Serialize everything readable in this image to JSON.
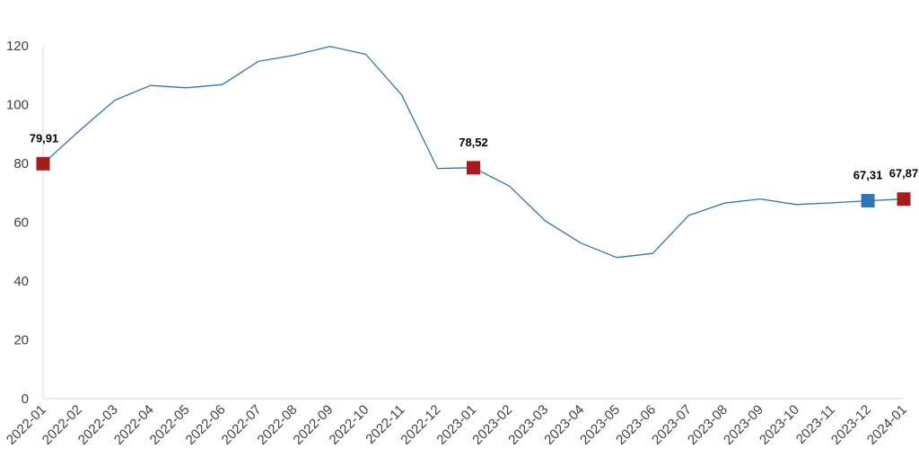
{
  "chart_data": {
    "type": "line",
    "title": "",
    "xlabel": "",
    "ylabel": "",
    "ylim": [
      0,
      120
    ],
    "yticks": [
      0,
      20,
      40,
      60,
      80,
      100,
      120
    ],
    "grid": false,
    "legend": "none",
    "categories": [
      "2022-01",
      "2022-02",
      "2022-03",
      "2022-04",
      "2022-05",
      "2022-06",
      "2022-07",
      "2022-08",
      "2022-09",
      "2022-10",
      "2022-11",
      "2022-12",
      "2023-01",
      "2023-02",
      "2023-03",
      "2023-04",
      "2023-05",
      "2023-06",
      "2023-07",
      "2023-08",
      "2023-09",
      "2023-10",
      "2023-11",
      "2023-12",
      "2024-01"
    ],
    "series": [
      {
        "values": [
          79.91,
          91,
          101.5,
          106.5,
          105.7,
          106.8,
          114.7,
          116.8,
          119.8,
          117.1,
          103.3,
          78.3,
          78.52,
          72.3,
          60.5,
          52.9,
          48.0,
          49.4,
          62.3,
          66.5,
          67.9,
          66.0,
          66.6,
          67.31,
          67.87
        ],
        "color": "#2E75B6"
      }
    ],
    "highlighted_points": [
      {
        "category": "2022-01",
        "value": 79.91,
        "label": "79,91",
        "color": "#A61C1C"
      },
      {
        "category": "2023-01",
        "value": 78.52,
        "label": "78,52",
        "color": "#A61C1C"
      },
      {
        "category": "2023-12",
        "value": 67.31,
        "label": "67,31",
        "color": "#2E75B6"
      },
      {
        "category": "2024-01",
        "value": 67.87,
        "label": "67,87",
        "color": "#A61C1C"
      }
    ]
  }
}
